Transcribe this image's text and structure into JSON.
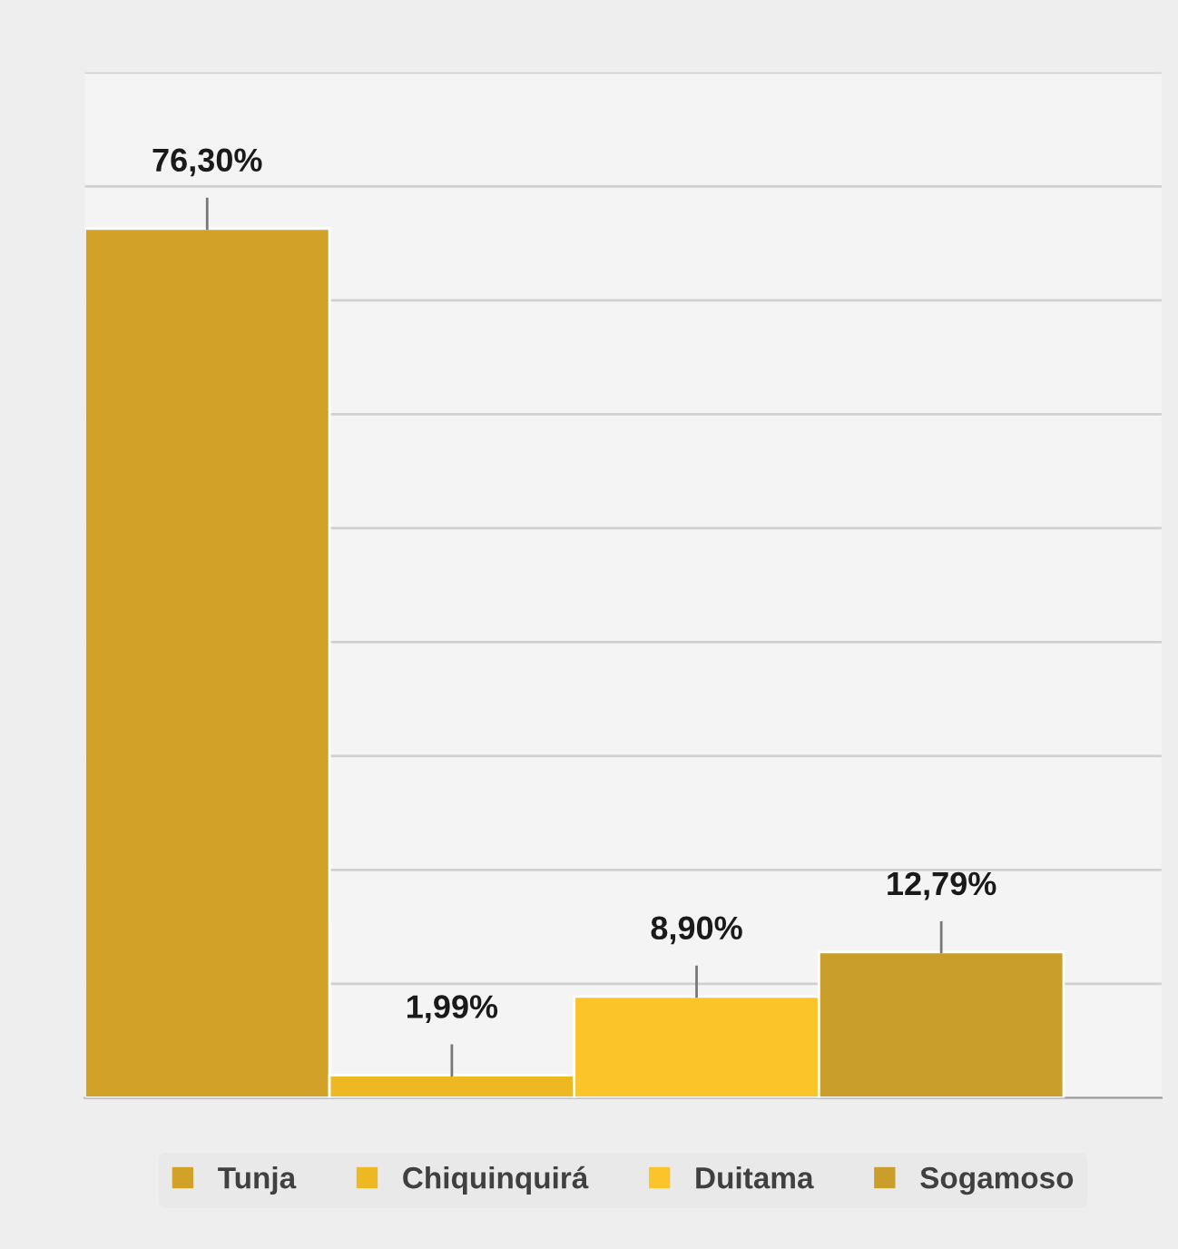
{
  "chart_data": {
    "type": "bar",
    "categories": [
      null
    ],
    "series": [
      {
        "name": "Tunja",
        "color": "#d1a128",
        "values": [
          76.3
        ],
        "value_labels": [
          "76,30%"
        ]
      },
      {
        "name": "Chiquinquirá",
        "color": "#edb822",
        "values": [
          1.99
        ],
        "value_labels": [
          "1,99%"
        ]
      },
      {
        "name": "Duitama",
        "color": "#fbc52a",
        "values": [
          8.9
        ],
        "value_labels": [
          "8,90%"
        ]
      },
      {
        "name": "Sogamoso",
        "color": "#c99e2a",
        "values": [
          12.79
        ],
        "value_labels": [
          "12,79%"
        ]
      }
    ],
    "ylim": [
      0,
      90
    ],
    "yticks": [
      {
        "value": 0,
        "label": null
      },
      {
        "value": 10,
        "label": null
      },
      {
        "value": 20,
        "label": null
      },
      {
        "value": 30,
        "label": null
      },
      {
        "value": 40,
        "label": null
      },
      {
        "value": 50,
        "label": null
      },
      {
        "value": 60,
        "label": null
      },
      {
        "value": 70,
        "label": null
      },
      {
        "value": 80,
        "label": null
      },
      {
        "value": 90,
        "label": null
      }
    ],
    "grid": "y",
    "legend": "bottom"
  }
}
